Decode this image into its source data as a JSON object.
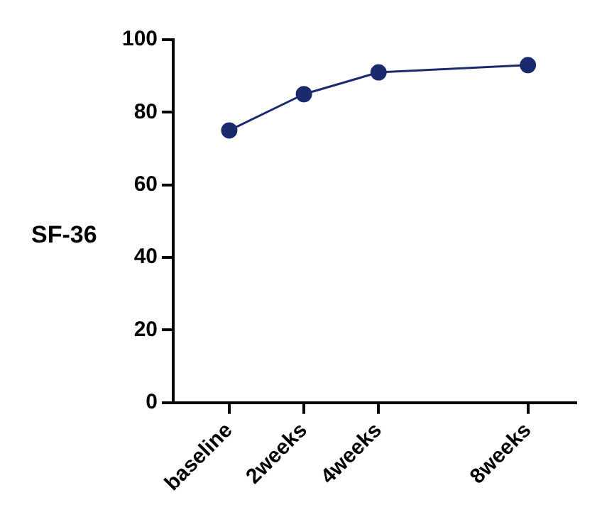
{
  "chart_data": {
    "type": "line",
    "ylabel": "SF-36",
    "x": [
      0,
      2,
      4,
      8
    ],
    "series": [
      {
        "color": "#1a2a6c",
        "values": [
          75,
          85,
          91,
          93
        ]
      }
    ],
    "xlim": [
      -1.5,
      9.3
    ],
    "xticks": [
      {
        "value": 0,
        "label": "baseline"
      },
      {
        "value": 2,
        "label": "2weeks"
      },
      {
        "value": 4,
        "label": "4weeks"
      },
      {
        "value": 8,
        "label": "8weeks"
      }
    ],
    "ylim": [
      0,
      100
    ],
    "yticks": [
      0,
      20,
      40,
      60,
      80,
      100
    ],
    "grid": false,
    "legend": false,
    "marker": "circle",
    "line_style": "solid"
  }
}
